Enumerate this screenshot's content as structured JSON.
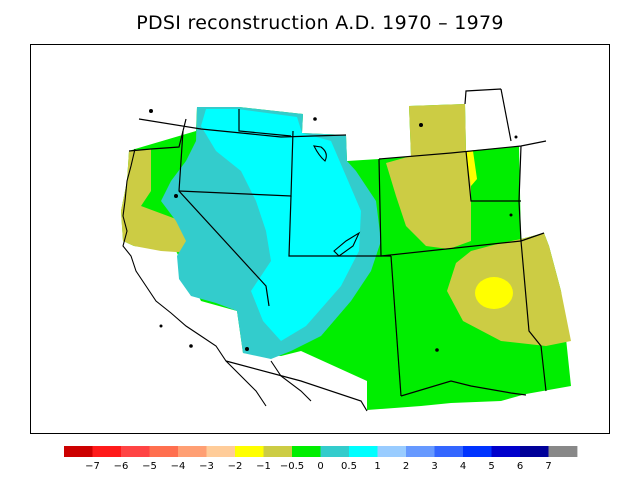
{
  "title": "PDSI reconstruction A.D. 1970 – 1979",
  "colorbar": {
    "colors": [
      "#cc0000",
      "#ff1a1a",
      "#ff4444",
      "#ff6f4f",
      "#ff9f73",
      "#ffcc99",
      "#ffff00",
      "#cccc44",
      "#00ee00",
      "#33cccc",
      "#00ffff",
      "#99ccff",
      "#6699ff",
      "#3366ff",
      "#0033ff",
      "#0000cc",
      "#000099",
      "#888888"
    ],
    "labels": [
      "−7",
      "−6",
      "−5",
      "−4",
      "−3",
      "−2",
      "−1",
      "−0.5",
      "0",
      "0.5",
      "1",
      "2",
      "3",
      "4",
      "5",
      "6",
      "7"
    ]
  },
  "palette": {
    "dry_mild": "#cccc44",
    "dry": "#ffff00",
    "near_normal": "#00ee00",
    "wet_mild": "#33cccc",
    "wet": "#00ffff",
    "outline": "#000000"
  }
}
